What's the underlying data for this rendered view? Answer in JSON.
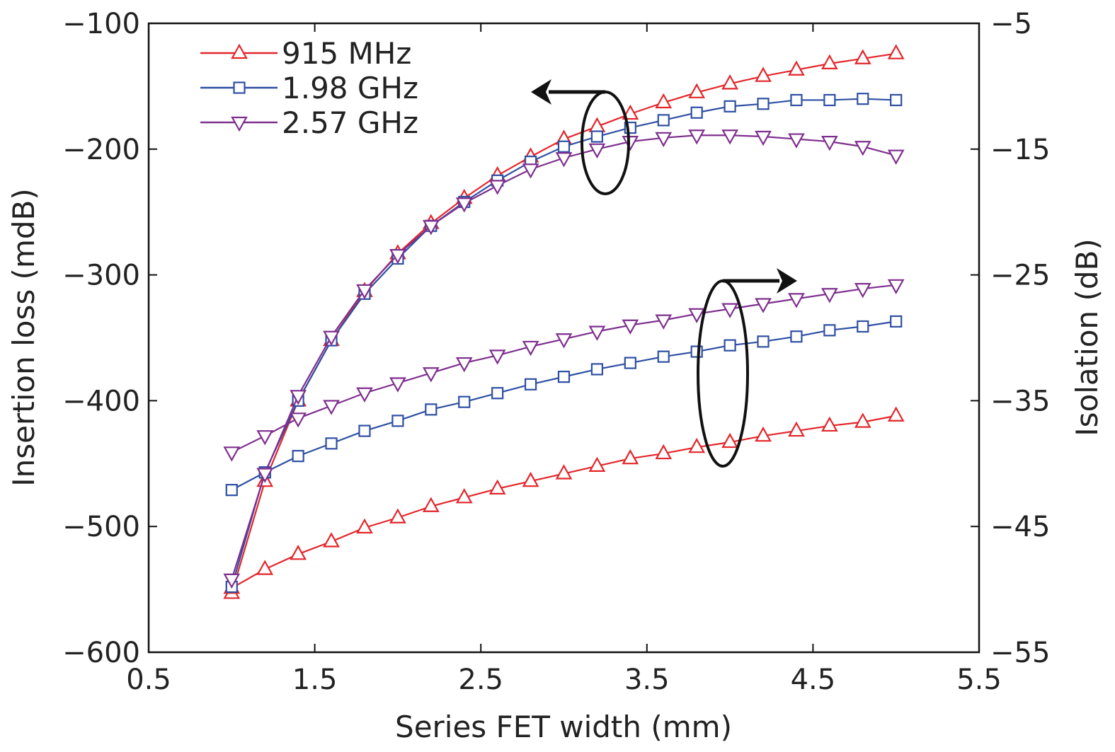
{
  "chart_data": {
    "type": "line",
    "xlabel": "Series FET width (mm)",
    "ylabel": "Insertion loss (mdB)",
    "y2label": "Isolation (dB)",
    "xlim": [
      0.5,
      5.5
    ],
    "ylim": [
      -600,
      -100
    ],
    "y2lim": [
      -55,
      -5
    ],
    "xticks": [
      "0.5",
      "1.5",
      "2.5",
      "3.5",
      "4.5",
      "5.5"
    ],
    "xtick_values": [
      0.5,
      1.5,
      2.5,
      3.5,
      4.5,
      5.5
    ],
    "yticks": [
      "−100",
      "−200",
      "−300",
      "−400",
      "−500",
      "−600"
    ],
    "ytick_values": [
      -100,
      -200,
      -300,
      -400,
      -500,
      -600
    ],
    "y2ticks": [
      "−5",
      "−15",
      "−25",
      "−35",
      "−45",
      "−55"
    ],
    "y2tick_values": [
      -5,
      -15,
      -25,
      -35,
      -45,
      -55
    ],
    "grid": false,
    "legend_position": "top-left",
    "x": [
      1.0,
      1.2,
      1.4,
      1.6,
      1.8,
      2.0,
      2.2,
      2.4,
      2.6,
      2.8,
      3.0,
      3.2,
      3.4,
      3.6,
      3.8,
      4.0,
      4.2,
      4.4,
      4.6,
      4.8,
      5.0
    ],
    "series": [
      {
        "name": "915 MHz",
        "color": "#e3262b",
        "marker": "triangle-up",
        "insertion_loss": [
          -553,
          -464,
          -400,
          -352,
          -313,
          -283,
          -259,
          -239,
          -221,
          -206,
          -192,
          -182,
          -172,
          -163,
          -155,
          -148,
          -142,
          -137,
          -132,
          -128,
          -124
        ],
        "isolation": [
          -49.9,
          -48.4,
          -47.2,
          -46.2,
          -45.1,
          -44.3,
          -43.4,
          -42.7,
          -42.0,
          -41.4,
          -40.8,
          -40.2,
          -39.6,
          -39.2,
          -38.7,
          -38.3,
          -37.8,
          -37.4,
          -37.0,
          -36.7,
          -36.2
        ]
      },
      {
        "name": "1.98 GHz",
        "color": "#2e4fa3",
        "marker": "square",
        "insertion_loss": [
          -548,
          -457,
          -400,
          -352,
          -315,
          -287,
          -261,
          -242,
          -225,
          -210,
          -198,
          -190,
          -183,
          -177,
          -171,
          -166,
          -164,
          -161,
          -161,
          -160,
          -161
        ],
        "isolation": [
          -42.1,
          -40.7,
          -39.4,
          -38.4,
          -37.4,
          -36.6,
          -35.7,
          -35.1,
          -34.4,
          -33.7,
          -33.1,
          -32.5,
          -32.0,
          -31.5,
          -31.1,
          -30.6,
          -30.3,
          -29.9,
          -29.4,
          -29.1,
          -28.7
        ]
      },
      {
        "name": "2.57 GHz",
        "color": "#7e2f8e",
        "marker": "triangle-down",
        "insertion_loss": [
          -542,
          -458,
          -396,
          -349,
          -312,
          -284,
          -261,
          -243,
          -229,
          -216,
          -207,
          -200,
          -194,
          -191,
          -189,
          -189,
          -190,
          -192,
          -194,
          -198,
          -205
        ],
        "isolation": [
          -39.1,
          -37.8,
          -36.4,
          -35.4,
          -34.4,
          -33.6,
          -32.8,
          -32.0,
          -31.4,
          -30.7,
          -30.1,
          -29.5,
          -29.0,
          -28.6,
          -28.1,
          -27.7,
          -27.3,
          -26.9,
          -26.5,
          -26.1,
          -25.8
        ]
      }
    ],
    "annotations": [
      {
        "type": "ellipse-arrow",
        "points_to": "left axis",
        "group": "insertion_loss"
      },
      {
        "type": "ellipse-arrow",
        "points_to": "right axis",
        "group": "isolation"
      }
    ]
  }
}
